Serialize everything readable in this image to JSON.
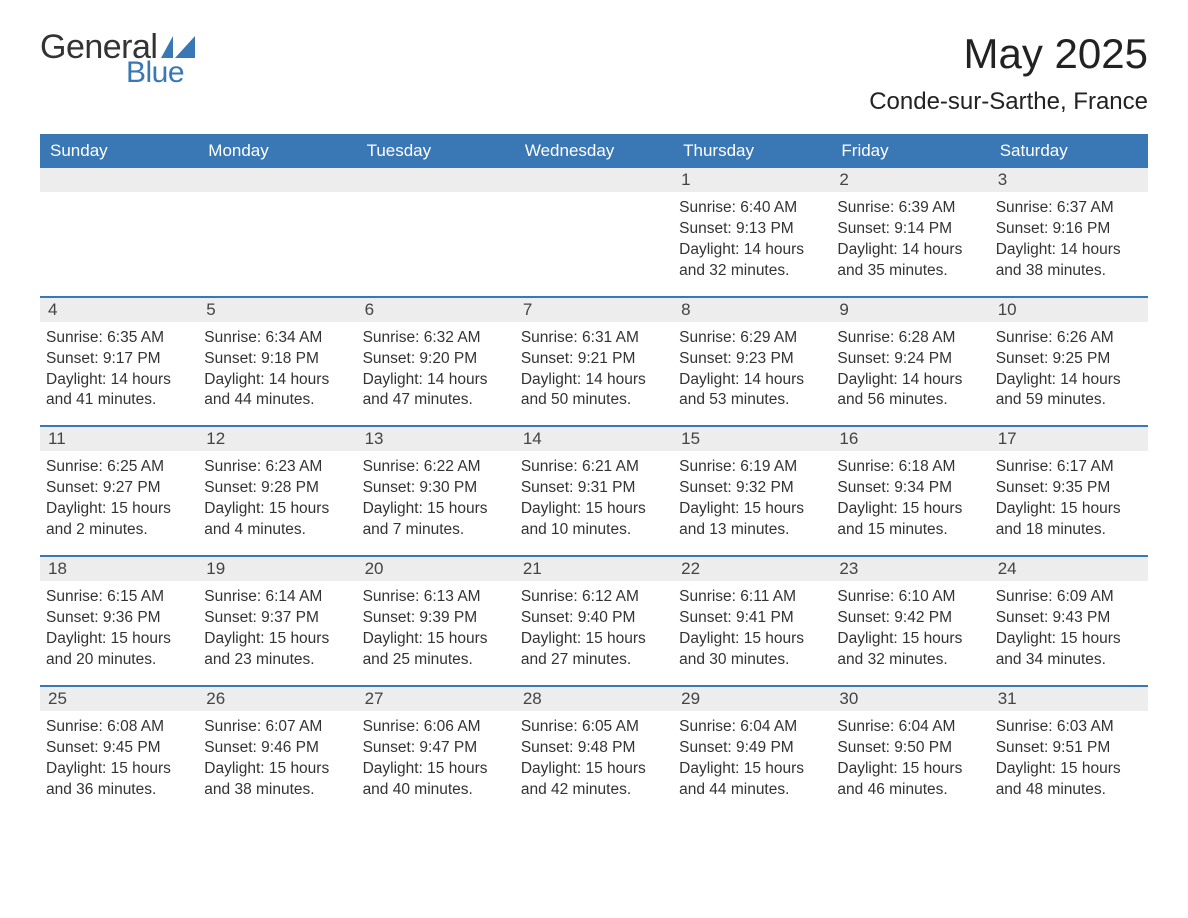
{
  "logo": {
    "text_general": "General",
    "text_blue": "Blue",
    "flag_color": "#3a77b5"
  },
  "title": {
    "month": "May 2025",
    "location": "Conde-sur-Sarthe, France"
  },
  "colors": {
    "header_bg": "#3a77b5",
    "header_text": "#ffffff",
    "daynum_bg": "#ededed",
    "daynum_text": "#444444",
    "body_text": "#333333",
    "page_bg": "#ffffff",
    "week_border": "#3a77b5"
  },
  "typography": {
    "title_month_fontsize": 42,
    "title_location_fontsize": 24,
    "day_header_fontsize": 17,
    "day_number_fontsize": 17,
    "day_body_fontsize": 15.5,
    "font_family": "Arial"
  },
  "day_names": [
    "Sunday",
    "Monday",
    "Tuesday",
    "Wednesday",
    "Thursday",
    "Friday",
    "Saturday"
  ],
  "weeks": [
    [
      null,
      null,
      null,
      null,
      {
        "n": "1",
        "sunrise": "Sunrise: 6:40 AM",
        "sunset": "Sunset: 9:13 PM",
        "daylight": "Daylight: 14 hours and 32 minutes."
      },
      {
        "n": "2",
        "sunrise": "Sunrise: 6:39 AM",
        "sunset": "Sunset: 9:14 PM",
        "daylight": "Daylight: 14 hours and 35 minutes."
      },
      {
        "n": "3",
        "sunrise": "Sunrise: 6:37 AM",
        "sunset": "Sunset: 9:16 PM",
        "daylight": "Daylight: 14 hours and 38 minutes."
      }
    ],
    [
      {
        "n": "4",
        "sunrise": "Sunrise: 6:35 AM",
        "sunset": "Sunset: 9:17 PM",
        "daylight": "Daylight: 14 hours and 41 minutes."
      },
      {
        "n": "5",
        "sunrise": "Sunrise: 6:34 AM",
        "sunset": "Sunset: 9:18 PM",
        "daylight": "Daylight: 14 hours and 44 minutes."
      },
      {
        "n": "6",
        "sunrise": "Sunrise: 6:32 AM",
        "sunset": "Sunset: 9:20 PM",
        "daylight": "Daylight: 14 hours and 47 minutes."
      },
      {
        "n": "7",
        "sunrise": "Sunrise: 6:31 AM",
        "sunset": "Sunset: 9:21 PM",
        "daylight": "Daylight: 14 hours and 50 minutes."
      },
      {
        "n": "8",
        "sunrise": "Sunrise: 6:29 AM",
        "sunset": "Sunset: 9:23 PM",
        "daylight": "Daylight: 14 hours and 53 minutes."
      },
      {
        "n": "9",
        "sunrise": "Sunrise: 6:28 AM",
        "sunset": "Sunset: 9:24 PM",
        "daylight": "Daylight: 14 hours and 56 minutes."
      },
      {
        "n": "10",
        "sunrise": "Sunrise: 6:26 AM",
        "sunset": "Sunset: 9:25 PM",
        "daylight": "Daylight: 14 hours and 59 minutes."
      }
    ],
    [
      {
        "n": "11",
        "sunrise": "Sunrise: 6:25 AM",
        "sunset": "Sunset: 9:27 PM",
        "daylight": "Daylight: 15 hours and 2 minutes."
      },
      {
        "n": "12",
        "sunrise": "Sunrise: 6:23 AM",
        "sunset": "Sunset: 9:28 PM",
        "daylight": "Daylight: 15 hours and 4 minutes."
      },
      {
        "n": "13",
        "sunrise": "Sunrise: 6:22 AM",
        "sunset": "Sunset: 9:30 PM",
        "daylight": "Daylight: 15 hours and 7 minutes."
      },
      {
        "n": "14",
        "sunrise": "Sunrise: 6:21 AM",
        "sunset": "Sunset: 9:31 PM",
        "daylight": "Daylight: 15 hours and 10 minutes."
      },
      {
        "n": "15",
        "sunrise": "Sunrise: 6:19 AM",
        "sunset": "Sunset: 9:32 PM",
        "daylight": "Daylight: 15 hours and 13 minutes."
      },
      {
        "n": "16",
        "sunrise": "Sunrise: 6:18 AM",
        "sunset": "Sunset: 9:34 PM",
        "daylight": "Daylight: 15 hours and 15 minutes."
      },
      {
        "n": "17",
        "sunrise": "Sunrise: 6:17 AM",
        "sunset": "Sunset: 9:35 PM",
        "daylight": "Daylight: 15 hours and 18 minutes."
      }
    ],
    [
      {
        "n": "18",
        "sunrise": "Sunrise: 6:15 AM",
        "sunset": "Sunset: 9:36 PM",
        "daylight": "Daylight: 15 hours and 20 minutes."
      },
      {
        "n": "19",
        "sunrise": "Sunrise: 6:14 AM",
        "sunset": "Sunset: 9:37 PM",
        "daylight": "Daylight: 15 hours and 23 minutes."
      },
      {
        "n": "20",
        "sunrise": "Sunrise: 6:13 AM",
        "sunset": "Sunset: 9:39 PM",
        "daylight": "Daylight: 15 hours and 25 minutes."
      },
      {
        "n": "21",
        "sunrise": "Sunrise: 6:12 AM",
        "sunset": "Sunset: 9:40 PM",
        "daylight": "Daylight: 15 hours and 27 minutes."
      },
      {
        "n": "22",
        "sunrise": "Sunrise: 6:11 AM",
        "sunset": "Sunset: 9:41 PM",
        "daylight": "Daylight: 15 hours and 30 minutes."
      },
      {
        "n": "23",
        "sunrise": "Sunrise: 6:10 AM",
        "sunset": "Sunset: 9:42 PM",
        "daylight": "Daylight: 15 hours and 32 minutes."
      },
      {
        "n": "24",
        "sunrise": "Sunrise: 6:09 AM",
        "sunset": "Sunset: 9:43 PM",
        "daylight": "Daylight: 15 hours and 34 minutes."
      }
    ],
    [
      {
        "n": "25",
        "sunrise": "Sunrise: 6:08 AM",
        "sunset": "Sunset: 9:45 PM",
        "daylight": "Daylight: 15 hours and 36 minutes."
      },
      {
        "n": "26",
        "sunrise": "Sunrise: 6:07 AM",
        "sunset": "Sunset: 9:46 PM",
        "daylight": "Daylight: 15 hours and 38 minutes."
      },
      {
        "n": "27",
        "sunrise": "Sunrise: 6:06 AM",
        "sunset": "Sunset: 9:47 PM",
        "daylight": "Daylight: 15 hours and 40 minutes."
      },
      {
        "n": "28",
        "sunrise": "Sunrise: 6:05 AM",
        "sunset": "Sunset: 9:48 PM",
        "daylight": "Daylight: 15 hours and 42 minutes."
      },
      {
        "n": "29",
        "sunrise": "Sunrise: 6:04 AM",
        "sunset": "Sunset: 9:49 PM",
        "daylight": "Daylight: 15 hours and 44 minutes."
      },
      {
        "n": "30",
        "sunrise": "Sunrise: 6:04 AM",
        "sunset": "Sunset: 9:50 PM",
        "daylight": "Daylight: 15 hours and 46 minutes."
      },
      {
        "n": "31",
        "sunrise": "Sunrise: 6:03 AM",
        "sunset": "Sunset: 9:51 PM",
        "daylight": "Daylight: 15 hours and 48 minutes."
      }
    ]
  ]
}
